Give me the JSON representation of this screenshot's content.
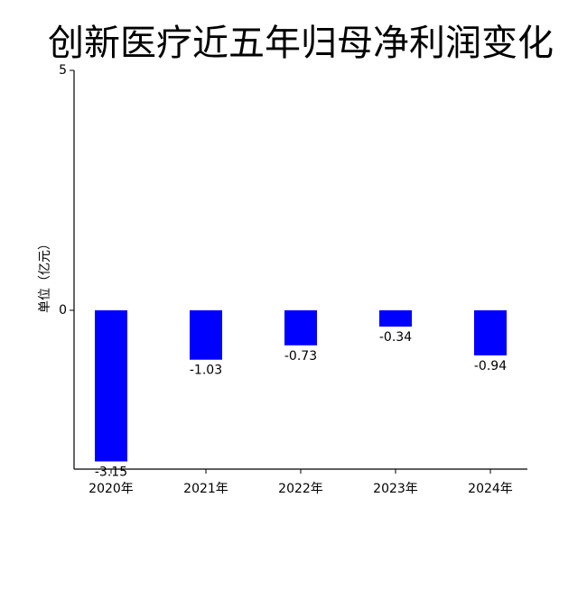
{
  "chart_data": {
    "type": "bar",
    "title": "创新医疗近五年归母净利润变化",
    "y_label": "单位（亿元）",
    "categories": [
      "2020年",
      "2021年",
      "2022年",
      "2023年",
      "2024年"
    ],
    "values": [
      -3.15,
      -1.03,
      -0.73,
      -0.34,
      -0.94
    ],
    "color": "#0000ff",
    "ylim": [
      -3.31,
      5
    ],
    "yticks": [
      0,
      5
    ],
    "grid": false
  }
}
